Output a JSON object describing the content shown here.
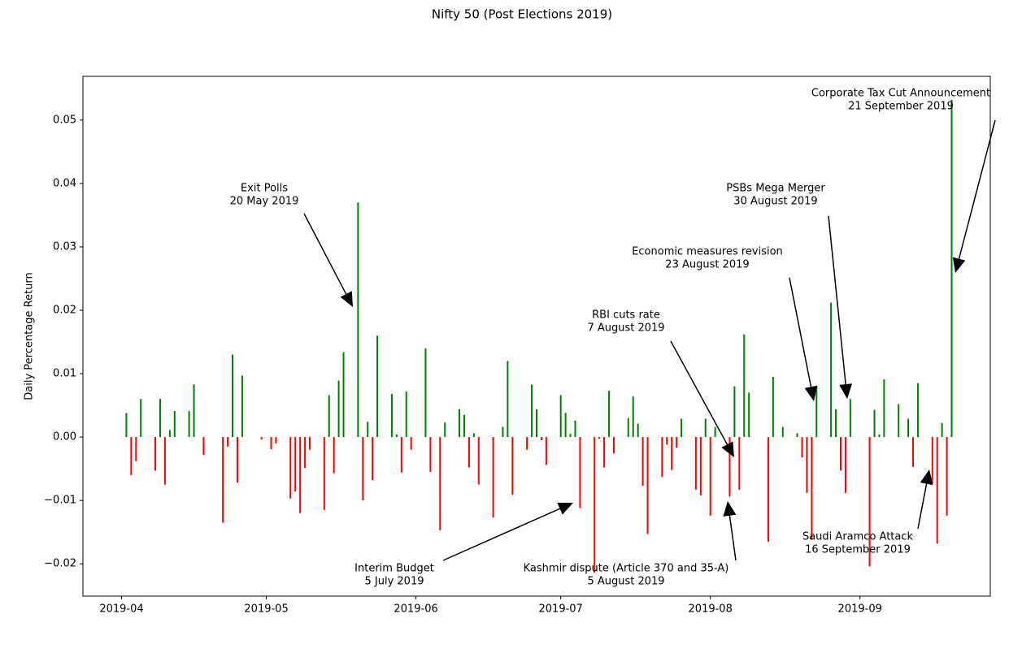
{
  "chart_data": {
    "type": "bar",
    "title": "Nifty 50 (Post Elections 2019)",
    "y_label": "Daily Percentage Return",
    "positive_color": "#008000",
    "negative_color": "#ff0000",
    "xlim": [
      "2019-03-24",
      "2019-09-28"
    ],
    "xticks": [
      {
        "value": "2019-04-01",
        "label": "2019-04"
      },
      {
        "value": "2019-05-01",
        "label": "2019-05"
      },
      {
        "value": "2019-06-01",
        "label": "2019-06"
      },
      {
        "value": "2019-07-01",
        "label": "2019-07"
      },
      {
        "value": "2019-08-01",
        "label": "2019-08"
      },
      {
        "value": "2019-09-01",
        "label": "2019-09"
      }
    ],
    "ylim": [
      -0.0251,
      0.0569
    ],
    "yticks": [
      {
        "value": -0.02,
        "label": "−0.02"
      },
      {
        "value": -0.01,
        "label": "−0.01"
      },
      {
        "value": 0,
        "label": "0.00"
      },
      0.01,
      0.02,
      0.03,
      0.04,
      0.05
    ],
    "x": [
      "2019-04-02",
      "2019-04-03",
      "2019-04-04",
      "2019-04-05",
      "2019-04-08",
      "2019-04-09",
      "2019-04-10",
      "2019-04-11",
      "2019-04-12",
      "2019-04-15",
      "2019-04-16",
      "2019-04-18",
      "2019-04-22",
      "2019-04-23",
      "2019-04-24",
      "2019-04-25",
      "2019-04-26",
      "2019-04-30",
      "2019-05-02",
      "2019-05-03",
      "2019-05-06",
      "2019-05-07",
      "2019-05-08",
      "2019-05-09",
      "2019-05-10",
      "2019-05-13",
      "2019-05-14",
      "2019-05-15",
      "2019-05-16",
      "2019-05-17",
      "2019-05-20",
      "2019-05-21",
      "2019-05-22",
      "2019-05-23",
      "2019-05-24",
      "2019-05-27",
      "2019-05-28",
      "2019-05-29",
      "2019-05-30",
      "2019-05-31",
      "2019-06-03",
      "2019-06-04",
      "2019-06-06",
      "2019-06-07",
      "2019-06-10",
      "2019-06-11",
      "2019-06-12",
      "2019-06-13",
      "2019-06-14",
      "2019-06-17",
      "2019-06-19",
      "2019-06-20",
      "2019-06-21",
      "2019-06-24",
      "2019-06-25",
      "2019-06-26",
      "2019-06-27",
      "2019-06-28",
      "2019-07-01",
      "2019-07-02",
      "2019-07-03",
      "2019-07-04",
      "2019-07-05",
      "2019-07-08",
      "2019-07-09",
      "2019-07-10",
      "2019-07-11",
      "2019-07-12",
      "2019-07-15",
      "2019-07-16",
      "2019-07-17",
      "2019-07-18",
      "2019-07-19",
      "2019-07-22",
      "2019-07-23",
      "2019-07-24",
      "2019-07-25",
      "2019-07-26",
      "2019-07-29",
      "2019-07-30",
      "2019-07-31",
      "2019-08-01",
      "2019-08-02",
      "2019-08-05",
      "2019-08-06",
      "2019-08-07",
      "2019-08-08",
      "2019-08-09",
      "2019-08-13",
      "2019-08-14",
      "2019-08-16",
      "2019-08-19",
      "2019-08-20",
      "2019-08-21",
      "2019-08-22",
      "2019-08-23",
      "2019-08-26",
      "2019-08-27",
      "2019-08-28",
      "2019-08-29",
      "2019-08-30",
      "2019-09-03",
      "2019-09-04",
      "2019-09-05",
      "2019-09-06",
      "2019-09-09",
      "2019-09-11",
      "2019-09-12",
      "2019-09-13",
      "2019-09-16",
      "2019-09-17",
      "2019-09-18",
      "2019-09-19",
      "2019-09-20"
    ],
    "values": [
      0.0038,
      -0.006,
      -0.0038,
      0.006,
      -0.0053,
      0.006,
      -0.0075,
      0.0011,
      0.0041,
      0.0041,
      0.0083,
      -0.0028,
      -0.0135,
      -0.0015,
      0.013,
      -0.0072,
      0.0097,
      -0.0004,
      -0.0019,
      -0.001,
      -0.0097,
      -0.0086,
      -0.012,
      -0.0049,
      -0.002,
      -0.0115,
      0.0066,
      -0.0057,
      0.0089,
      0.0134,
      0.037,
      -0.01,
      0.0024,
      -0.0068,
      0.016,
      0.0068,
      0.0004,
      -0.0056,
      0.0072,
      -0.002,
      0.014,
      -0.0055,
      -0.0147,
      0.0023,
      0.0044,
      0.0035,
      -0.0048,
      0.0006,
      -0.0075,
      -0.0127,
      0.0016,
      0.012,
      -0.0091,
      -0.002,
      0.0083,
      0.0044,
      -0.0005,
      -0.0044,
      0.0066,
      0.0038,
      0.0005,
      0.0026,
      -0.0112,
      -0.0214,
      -0.0003,
      -0.0048,
      0.0073,
      -0.0026,
      0.003,
      0.0064,
      0.0021,
      -0.0077,
      -0.0153,
      -0.0063,
      -0.0012,
      -0.0052,
      -0.0017,
      0.0029,
      -0.0083,
      -0.0092,
      0.0029,
      -0.0124,
      0.0016,
      -0.0094,
      0.008,
      -0.0083,
      0.0162,
      0.007,
      -0.0165,
      0.0095,
      0.0016,
      0.0006,
      -0.0032,
      -0.0088,
      -0.0162,
      0.008,
      0.0212,
      0.0044,
      -0.0053,
      -0.0088,
      0.006,
      -0.0204,
      0.0043,
      0.0004,
      0.0091,
      0.0052,
      0.0029,
      -0.0047,
      0.0085,
      -0.0073,
      -0.0168,
      0.0022,
      -0.0124,
      0.0532
    ],
    "annotations": [
      {
        "text": [
          "Exit Polls",
          "20 May 2019"
        ]
      },
      {
        "text": [
          "Interim Budget",
          "5 July 2019"
        ]
      },
      {
        "text": [
          "Kashmir dispute (Article 370 and 35-A)",
          "5 August 2019"
        ]
      },
      {
        "text": [
          "RBI cuts rate",
          "7 August 2019"
        ]
      },
      {
        "text": [
          "Economic measures revision",
          "23 August 2019"
        ]
      },
      {
        "text": [
          "PSBs Mega Merger",
          "30 August 2019"
        ]
      },
      {
        "text": [
          "Saudi Aramco Attack",
          "16 September 2019"
        ]
      },
      {
        "text": [
          "Corporate Tax Cut Announcement",
          "21 September 2019"
        ]
      }
    ]
  }
}
